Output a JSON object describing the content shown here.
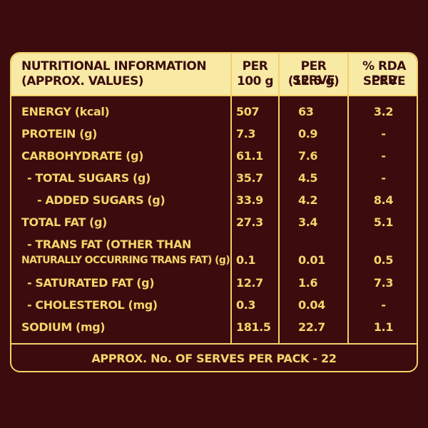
{
  "header": {
    "col0_line1": "NUTRITIONAL INFORMATION",
    "col0_line2": "(APPROX. VALUES)",
    "col1_line1": "PER",
    "col1_line2": "100 g",
    "col2_line1": "PER SERVE",
    "col2_line2": "(12.5 g)",
    "col3_line1": "% RDA PER",
    "col3_line2": "SERVE"
  },
  "rows": [
    {
      "label": "ENERGY (kcal)",
      "per100": "507",
      "perServe": "63",
      "rda": "3.2"
    },
    {
      "label": "PROTEIN (g)",
      "per100": "7.3",
      "perServe": "0.9",
      "rda": "-"
    },
    {
      "label": "CARBOHYDRATE (g)",
      "per100": "61.1",
      "perServe": "7.6",
      "rda": "-"
    },
    {
      "label": "- TOTAL SUGARS (g)",
      "per100": "35.7",
      "perServe": "4.5",
      "rda": "-"
    },
    {
      "label": "- ADDED SUGARS (g)",
      "per100": "33.9",
      "perServe": "4.2",
      "rda": "8.4"
    },
    {
      "label": "TOTAL FAT (g)",
      "per100": "27.3",
      "perServe": "3.4",
      "rda": "5.1"
    },
    {
      "label_line1": "- TRANS FAT (OTHER THAN",
      "label_line2": "NATURALLY OCCURRING TRANS FAT) (g)",
      "per100": "0.1",
      "perServe": "0.01",
      "rda": "0.5"
    },
    {
      "label": "- SATURATED FAT (g)",
      "per100": "12.7",
      "perServe": "1.6",
      "rda": "7.3"
    },
    {
      "label": "- CHOLESTEROL (mg)",
      "per100": "0.3",
      "perServe": "0.04",
      "rda": "-"
    },
    {
      "label": "SODIUM (mg)",
      "per100": "181.5",
      "perServe": "22.7",
      "rda": "1.1"
    }
  ],
  "footer": "APPROX. No. OF SERVES PER PACK - 22"
}
